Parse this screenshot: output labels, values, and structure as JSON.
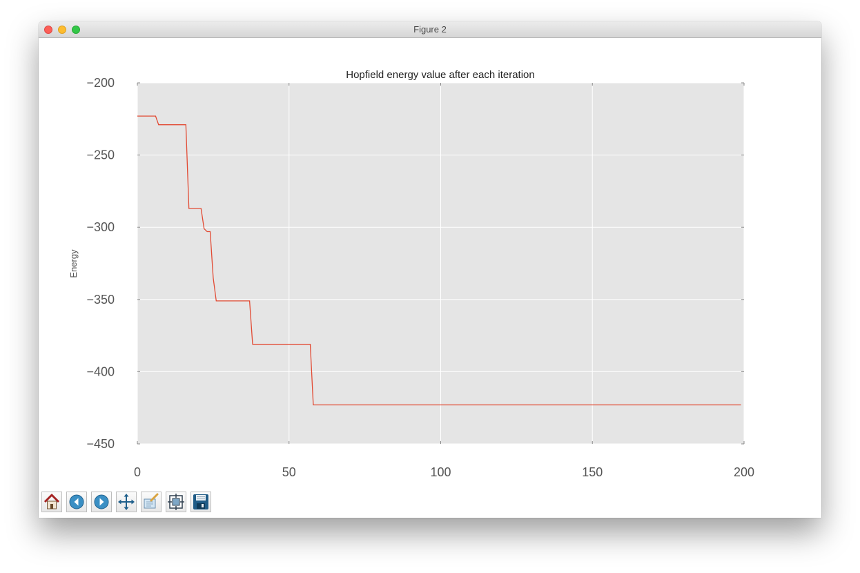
{
  "window": {
    "title": "Figure 2"
  },
  "toolbar": {
    "buttons": [
      {
        "name": "home-button",
        "icon": "home-icon"
      },
      {
        "name": "back-button",
        "icon": "back-arrow-icon"
      },
      {
        "name": "forward-button",
        "icon": "forward-arrow-icon"
      },
      {
        "name": "pan-button",
        "icon": "move-arrows-icon"
      },
      {
        "name": "zoom-button",
        "icon": "zoom-rect-icon"
      },
      {
        "name": "subplots-button",
        "icon": "subplots-config-icon"
      },
      {
        "name": "save-button",
        "icon": "floppy-disk-icon"
      }
    ]
  },
  "chart_data": {
    "type": "line",
    "title": "Hopfield energy value after each iteration",
    "xlabel": "",
    "ylabel": "Energy",
    "xlim": [
      0,
      200
    ],
    "ylim": [
      -450,
      -200
    ],
    "x_ticks": [
      0,
      50,
      100,
      150,
      200
    ],
    "y_ticks": [
      -200,
      -250,
      -300,
      -350,
      -400,
      -450
    ],
    "x_tick_labels": [
      "0",
      "50",
      "100",
      "150",
      "200"
    ],
    "y_tick_labels": [
      "−200",
      "−250",
      "−300",
      "−350",
      "−400",
      "−450"
    ],
    "grid": true,
    "colors": {
      "line": "#e24a33",
      "axes_bg": "#e5e5e5",
      "grid": "#ffffff"
    },
    "series": [
      {
        "x": [
          0,
          6,
          7,
          16,
          17,
          21,
          22,
          23,
          24,
          25,
          26,
          37,
          38,
          57,
          58,
          199
        ],
        "y": [
          -223,
          -223,
          -229,
          -229,
          -287,
          -287,
          -301,
          -303,
          -303,
          -335,
          -351,
          -351,
          -381,
          -381,
          -423,
          -423
        ]
      }
    ]
  }
}
